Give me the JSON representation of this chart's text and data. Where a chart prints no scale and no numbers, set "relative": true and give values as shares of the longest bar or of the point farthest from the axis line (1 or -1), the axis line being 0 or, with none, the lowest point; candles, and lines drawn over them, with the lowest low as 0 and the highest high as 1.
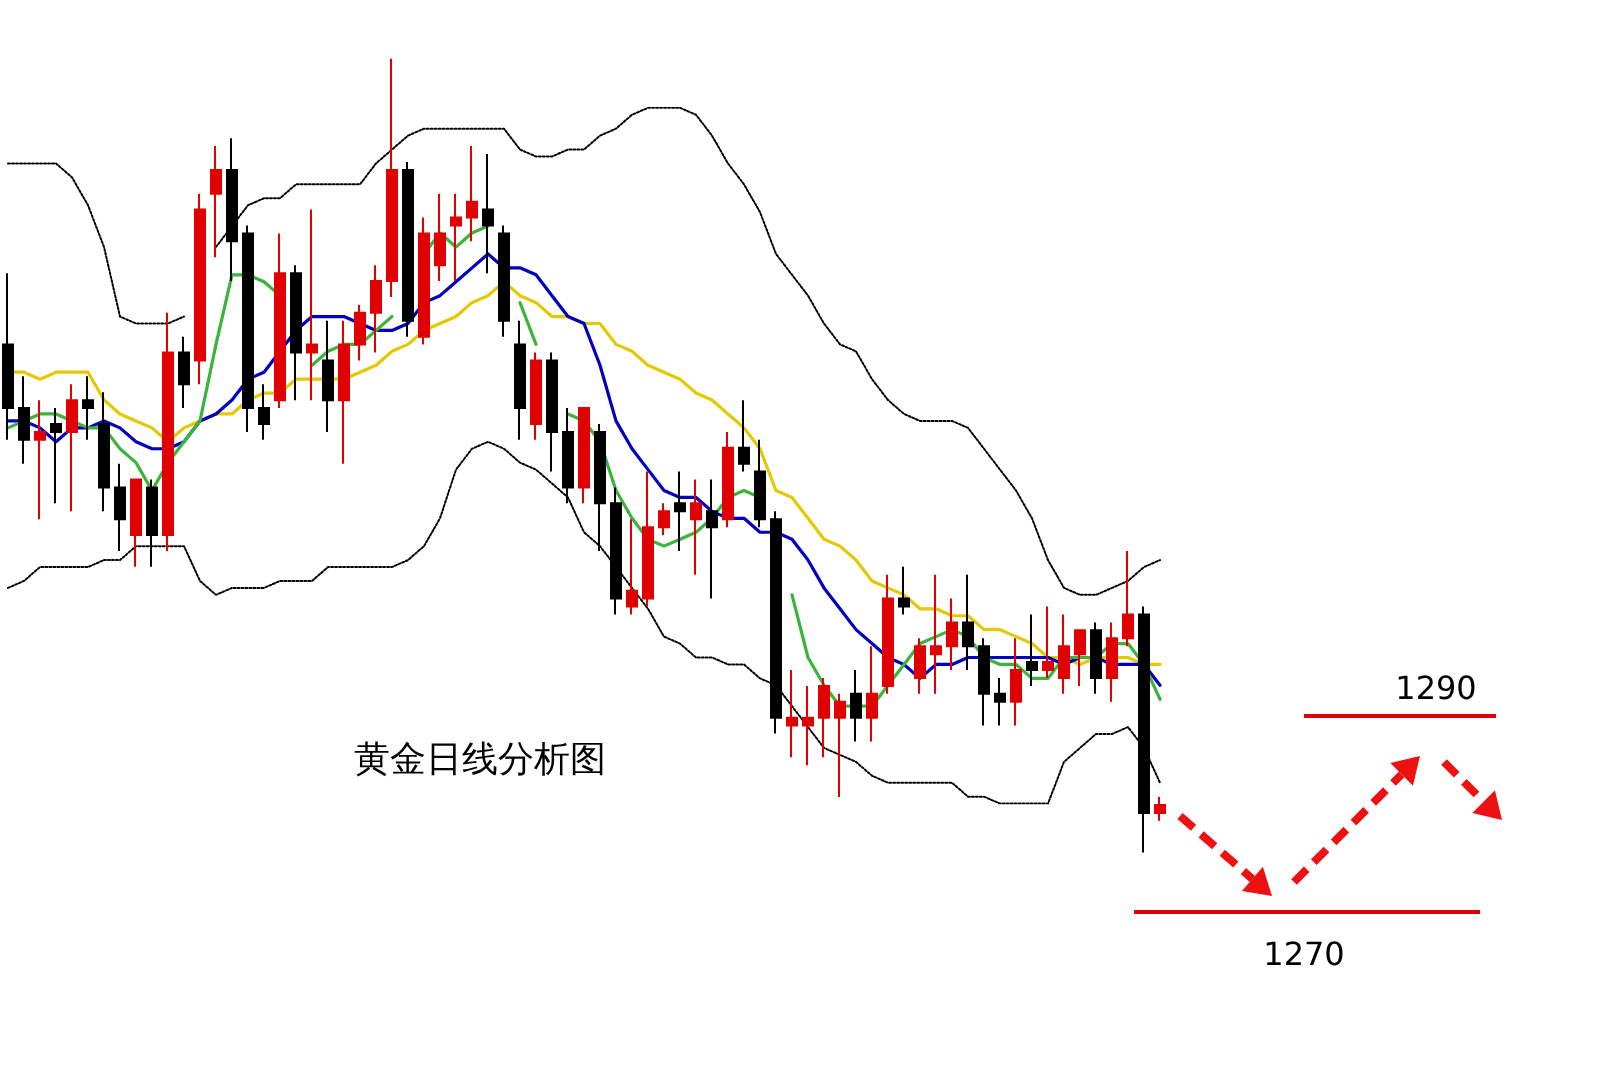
{
  "chart_data": [
    {
      "type": "candlestick",
      "title": "黄金日线分析图",
      "relative": true,
      "annotations": [
        "1290",
        "1270"
      ],
      "categories": [
        null,
        null,
        null,
        null,
        null,
        null,
        null,
        null,
        null,
        null,
        null,
        null,
        null,
        null,
        null,
        null,
        null,
        null,
        null,
        null,
        null,
        null,
        null,
        null,
        null,
        null,
        null,
        null,
        null,
        null,
        null,
        null,
        null,
        null,
        null,
        null,
        null,
        null,
        null,
        null,
        null,
        null,
        null,
        null,
        null,
        null,
        null,
        null,
        null,
        null,
        null,
        null,
        null,
        null,
        null,
        null,
        null,
        null,
        null,
        null,
        null,
        null,
        null,
        null,
        null,
        null,
        null,
        null,
        null,
        null,
        null,
        null,
        null
      ],
      "ohlc": [
        [
          0.64,
          0.73,
          0.52,
          0.56
        ],
        [
          0.56,
          0.6,
          0.49,
          0.52
        ],
        [
          0.52,
          0.57,
          0.42,
          0.53
        ],
        [
          0.54,
          0.56,
          0.44,
          0.53
        ],
        [
          0.53,
          0.59,
          0.43,
          0.57
        ],
        [
          0.57,
          0.6,
          0.52,
          0.56
        ],
        [
          0.54,
          0.58,
          0.43,
          0.46
        ],
        [
          0.46,
          0.49,
          0.38,
          0.42
        ],
        [
          0.4,
          0.47,
          0.36,
          0.47
        ],
        [
          0.46,
          0.47,
          0.36,
          0.4
        ],
        [
          0.4,
          0.68,
          0.38,
          0.63
        ],
        [
          0.63,
          0.65,
          0.56,
          0.59
        ],
        [
          0.62,
          0.83,
          0.59,
          0.81
        ],
        [
          0.83,
          0.89,
          0.75,
          0.86
        ],
        [
          0.86,
          0.9,
          0.72,
          0.77
        ],
        [
          0.78,
          0.79,
          0.53,
          0.56
        ],
        [
          0.56,
          0.59,
          0.52,
          0.54
        ],
        [
          0.57,
          0.78,
          0.56,
          0.73
        ],
        [
          0.73,
          0.74,
          0.57,
          0.63
        ],
        [
          0.63,
          0.81,
          0.57,
          0.64
        ],
        [
          0.62,
          0.67,
          0.53,
          0.57
        ],
        [
          0.57,
          0.67,
          0.49,
          0.64
        ],
        [
          0.64,
          0.69,
          0.62,
          0.68
        ],
        [
          0.68,
          0.74,
          0.63,
          0.72
        ],
        [
          0.72,
          1,
          0.7,
          0.86
        ],
        [
          0.86,
          0.87,
          0.65,
          0.67
        ],
        [
          0.65,
          0.8,
          0.64,
          0.78
        ],
        [
          0.74,
          0.83,
          0.72,
          0.78
        ],
        [
          0.79,
          0.83,
          0.72,
          0.8
        ],
        [
          0.8,
          0.89,
          0.77,
          0.82
        ],
        [
          0.81,
          0.88,
          0.73,
          0.79
        ],
        [
          0.78,
          0.79,
          0.65,
          0.67
        ],
        [
          0.64,
          0.67,
          0.52,
          0.56
        ],
        [
          0.54,
          0.63,
          0.52,
          0.62
        ],
        [
          0.62,
          0.63,
          0.48,
          0.53
        ],
        [
          0.53,
          0.56,
          0.44,
          0.46
        ],
        [
          0.46,
          0.56,
          0.44,
          0.56
        ],
        [
          0.53,
          0.54,
          0.38,
          0.44
        ],
        [
          0.44,
          0.46,
          0.3,
          0.32
        ],
        [
          0.31,
          0.42,
          0.3,
          0.33
        ],
        [
          0.32,
          0.48,
          0.31,
          0.41
        ],
        [
          0.41,
          0.44,
          0.4,
          0.43
        ],
        [
          0.44,
          0.48,
          0.38,
          0.43
        ],
        [
          0.42,
          0.47,
          0.35,
          0.44
        ],
        [
          0.43,
          0.47,
          0.32,
          0.41
        ],
        [
          0.42,
          0.53,
          0.41,
          0.51
        ],
        [
          0.51,
          0.57,
          0.48,
          0.49
        ],
        [
          0.48,
          0.52,
          0.41,
          0.42
        ],
        [
          0.42,
          0.43,
          0.15,
          0.17
        ],
        [
          0.16,
          0.23,
          0.12,
          0.17
        ],
        [
          0.16,
          0.21,
          0.11,
          0.17
        ],
        [
          0.17,
          0.22,
          0.12,
          0.21
        ],
        [
          0.17,
          0.2,
          0.07,
          0.19
        ],
        [
          0.2,
          0.23,
          0.14,
          0.17
        ],
        [
          0.17,
          0.26,
          0.14,
          0.2
        ],
        [
          0.21,
          0.35,
          0.2,
          0.32
        ],
        [
          0.32,
          0.36,
          0.3,
          0.31
        ],
        [
          0.22,
          0.27,
          0.2,
          0.26
        ],
        [
          0.25,
          0.35,
          0.2,
          0.26
        ],
        [
          0.26,
          0.32,
          0.23,
          0.29
        ],
        [
          0.29,
          0.35,
          0.23,
          0.26
        ],
        [
          0.26,
          0.27,
          0.16,
          0.2
        ],
        [
          0.2,
          0.22,
          0.16,
          0.19
        ],
        [
          0.19,
          0.27,
          0.16,
          0.23
        ],
        [
          0.24,
          0.3,
          0.21,
          0.23
        ],
        [
          0.23,
          0.31,
          0.22,
          0.24
        ],
        [
          0.22,
          0.3,
          0.2,
          0.26
        ],
        [
          0.25,
          0.28,
          0.21,
          0.28
        ],
        [
          0.28,
          0.29,
          0.2,
          0.22
        ],
        [
          0.22,
          0.29,
          0.19,
          0.27
        ],
        [
          0.27,
          0.38,
          0.26,
          0.3
        ],
        [
          0.3,
          0.31,
          0,
          0.05
        ],
        [
          0.05,
          0.07,
          0.04,
          0.06
        ]
      ],
      "colors": [
        "#000000",
        "#000000",
        "#e00000",
        "#000000",
        "#e00000",
        "#000000",
        "#000000",
        "#000000",
        "#e00000",
        "#000000",
        "#e00000",
        "#000000",
        "#e00000",
        "#e00000",
        "#000000",
        "#000000",
        "#000000",
        "#e00000",
        "#000000",
        "#e00000",
        "#000000",
        "#e00000",
        "#e00000",
        "#e00000",
        "#e00000",
        "#000000",
        "#e00000",
        "#e00000",
        "#e00000",
        "#e00000",
        "#000000",
        "#000000",
        "#000000",
        "#e00000",
        "#000000",
        "#000000",
        "#e00000",
        "#000000",
        "#000000",
        "#e00000",
        "#e00000",
        "#e00000",
        "#000000",
        "#e00000",
        "#000000",
        "#e00000",
        "#000000",
        "#000000",
        "#000000",
        "#e00000",
        "#e00000",
        "#e00000",
        "#e00000",
        "#000000",
        "#e00000",
        "#e00000",
        "#000000",
        "#e00000",
        "#e00000",
        "#e00000",
        "#000000",
        "#000000",
        "#000000",
        "#e00000",
        "#000000",
        "#e00000",
        "#e00000",
        "#e00000",
        "#000000",
        "#e00000",
        "#e00000",
        "#000000",
        "#e00000"
      ]
    },
    {
      "type": "line",
      "relative": true,
      "categories": [
        null,
        null,
        null,
        null,
        null,
        null,
        null,
        null,
        null,
        null,
        null,
        null,
        null,
        null,
        null,
        null,
        null,
        null,
        null,
        null,
        null,
        null,
        null,
        null,
        null,
        null,
        null,
        null,
        null,
        null,
        null,
        null,
        null,
        null,
        null,
        null,
        null,
        null,
        null,
        null,
        null,
        null,
        null,
        null,
        null,
        null,
        null,
        null,
        null,
        null,
        null,
        null,
        null,
        null,
        null,
        null,
        null,
        null,
        null,
        null,
        null,
        null,
        null,
        null,
        null,
        null,
        null,
        null,
        null,
        null,
        null,
        null,
        null
      ],
      "series": [
        {
          "color": "#000000",
          "line_style": "dotted",
          "values": [
            0.92,
            0.92,
            0.92,
            0.92,
            0.9,
            0.86,
            0.8,
            0.7,
            0.69,
            0.69,
            0.69,
            0.7,
            null,
            0.8,
            0.83,
            0.86,
            0.87,
            0.87,
            0.89,
            0.89,
            0.89,
            0.89,
            0.89,
            0.92,
            0.94,
            0.96,
            0.97,
            0.97,
            0.97,
            0.97,
            0.97,
            0.97,
            0.94,
            0.93,
            0.93,
            0.94,
            0.94,
            0.96,
            0.97,
            0.99,
            1,
            1,
            1,
            0.99,
            0.96,
            0.92,
            0.89,
            0.85,
            0.79,
            0.76,
            0.73,
            0.69,
            0.66,
            0.65,
            0.61,
            0.58,
            0.56,
            0.55,
            0.55,
            0.55,
            0.54,
            0.51,
            0.48,
            0.45,
            0.41,
            0.35,
            0.31,
            0.3,
            0.3,
            0.31,
            0.32,
            0.34,
            0.35
          ]
        },
        {
          "color": "#000000",
          "line_style": "dotted",
          "values": [
            0.31,
            0.32,
            0.34,
            0.34,
            0.34,
            0.34,
            0.35,
            0.35,
            0.37,
            0.37,
            0.37,
            0.37,
            0.32,
            0.3,
            0.31,
            0.31,
            0.31,
            0.32,
            0.32,
            0.32,
            0.34,
            0.34,
            0.34,
            0.34,
            0.34,
            0.35,
            0.37,
            0.41,
            0.48,
            0.51,
            0.52,
            0.51,
            0.49,
            0.48,
            0.46,
            0.44,
            0.39,
            0.37,
            0.34,
            0.31,
            0.28,
            0.24,
            0.23,
            0.21,
            0.21,
            0.2,
            0.2,
            0.18,
            0.17,
            0.14,
            0.11,
            0.08,
            0.07,
            0.06,
            0.04,
            0.03,
            0.03,
            0.03,
            0.03,
            0.03,
            0.01,
            0.01,
            0,
            0,
            0,
            0,
            0.06,
            0.08,
            0.1,
            0.1,
            0.11,
            0.08,
            0.03
          ]
        },
        {
          "color": "#e6c800",
          "values": [
            0.62,
            0.62,
            0.61,
            0.62,
            0.62,
            0.62,
            0.58,
            0.56,
            0.55,
            0.54,
            0.52,
            0.54,
            0.55,
            0.56,
            0.56,
            0.58,
            0.59,
            0.59,
            0.61,
            0.61,
            0.61,
            0.61,
            0.62,
            0.63,
            0.65,
            0.66,
            0.68,
            0.69,
            0.7,
            0.72,
            0.73,
            0.75,
            0.73,
            0.72,
            0.7,
            0.7,
            0.69,
            0.69,
            0.66,
            0.65,
            0.63,
            0.62,
            0.61,
            0.59,
            0.58,
            0.56,
            0.54,
            0.51,
            0.45,
            0.44,
            0.41,
            0.38,
            0.37,
            0.35,
            0.32,
            0.31,
            0.3,
            0.28,
            0.28,
            0.27,
            0.27,
            0.25,
            0.25,
            0.24,
            0.23,
            0.21,
            0.21,
            0.2,
            0.21,
            0.21,
            0.21,
            0.2,
            0.2
          ]
        },
        {
          "color": "#0000c0",
          "values": [
            0.55,
            0.55,
            0.54,
            0.52,
            0.54,
            0.54,
            0.55,
            0.54,
            0.52,
            0.51,
            0.51,
            0.52,
            0.55,
            0.56,
            0.58,
            0.61,
            0.62,
            0.65,
            0.68,
            0.7,
            0.7,
            0.7,
            0.69,
            0.68,
            0.68,
            0.69,
            0.72,
            0.73,
            0.75,
            0.77,
            0.79,
            0.77,
            0.77,
            0.76,
            0.73,
            0.7,
            0.69,
            0.63,
            0.55,
            0.51,
            0.48,
            0.45,
            0.44,
            0.44,
            0.42,
            0.41,
            0.41,
            0.39,
            0.39,
            0.38,
            0.35,
            0.31,
            0.28,
            0.25,
            0.23,
            0.21,
            0.2,
            0.18,
            0.2,
            0.2,
            0.21,
            0.21,
            0.21,
            0.21,
            0.21,
            0.21,
            0.2,
            0.21,
            0.21,
            0.2,
            0.2,
            0.2,
            0.17
          ]
        },
        {
          "color": "#3cb43c",
          "values": [
            0.54,
            0.55,
            0.56,
            0.56,
            0.55,
            0.54,
            0.54,
            0.51,
            0.49,
            0.45,
            0.49,
            0.52,
            0.55,
            0.66,
            0.76,
            0.76,
            0.75,
            0.73,
            null,
            0.63,
            0.65,
            0.66,
            0.66,
            0.68,
            0.7,
            null,
            0.79,
            0.82,
            0.8,
            0.82,
            0.83,
            null,
            0.72,
            0.66,
            null,
            0.56,
            0.55,
            0.52,
            0.45,
            0.41,
            0.38,
            0.37,
            0.38,
            0.39,
            0.41,
            0.44,
            0.45,
            0.44,
            null,
            0.3,
            0.21,
            0.17,
            0.14,
            0.14,
            0.14,
            0.17,
            0.2,
            0.23,
            0.24,
            0.25,
            0.24,
            0.21,
            0.2,
            0.2,
            0.18,
            0.18,
            0.21,
            0.21,
            0.21,
            0.23,
            0.23,
            0.2,
            0.15
          ]
        }
      ]
    }
  ]
}
